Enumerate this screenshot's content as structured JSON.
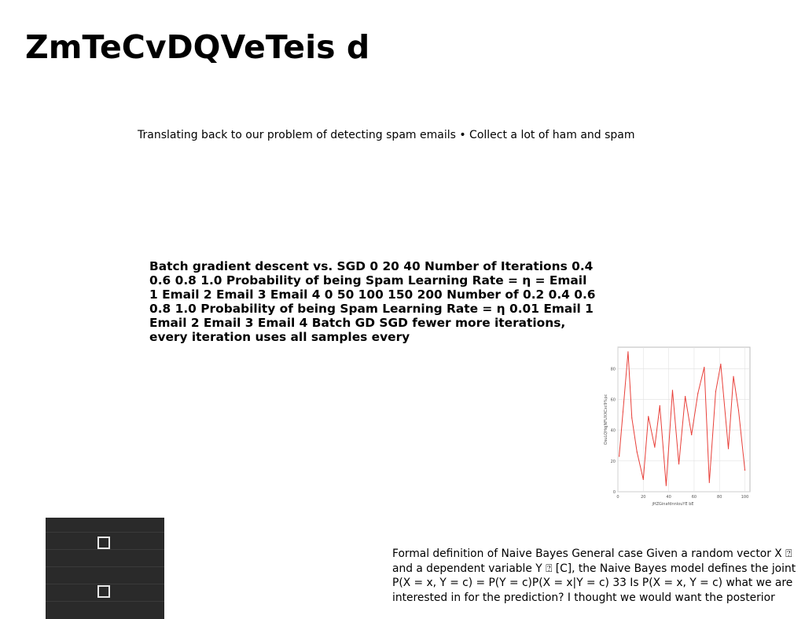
{
  "title": "ZmTeCvDQVeTeis d",
  "subtitle": "Translating back to our problem of detecting spam emails • Collect a lot of ham and spam",
  "bold_block": "Batch gradient descent vs. SGD 0 20 40 Number of Iterations 0.4 0.6 0.8 1.0 Probability of being Spam Learning Rate = η = Email 1 Email 2 Email 3 Email 4 0 50 100 150 200 Number of 0.2 0.4 0.6 0.8 1.0 Probability of being Spam Learning Rate = η 0.01 Email 1 Email 2 Email 3 Email 4 Batch GD SGD fewer more iterations, every iteration uses all samples every",
  "footer_text": "Formal definition of Naive Bayes General case Given a random vector X ⍰ and a dependent variable Y ⍰ [C], the Naive Bayes model defines the joint P(X = x, Y = c) = P(Y = c)P(X = x|Y = c) 33 Is P(X = x, Y = c) what we are interested in for the prediction? I thought we would want the posterior",
  "chart_data": {
    "type": "line",
    "xlabel": "jHZGinafdnnlouYE bE",
    "ylabel": "OsuLQHqjNFUXXCxc9%pc",
    "x": [
      1,
      4,
      8,
      11,
      15,
      20,
      24,
      29,
      33,
      38,
      43,
      48,
      53,
      58,
      63,
      68,
      72,
      77,
      81,
      87,
      91,
      95,
      100
    ],
    "y": [
      23,
      52,
      91,
      48,
      26,
      8,
      49,
      29,
      56,
      4,
      66,
      18,
      62,
      37,
      64,
      81,
      6,
      65,
      83,
      28,
      75,
      53,
      14
    ],
    "xlim": [
      0,
      104
    ],
    "ylim": [
      0,
      94
    ],
    "xticks": [
      0,
      20,
      40,
      60,
      80,
      100
    ],
    "yticks": [
      0,
      20,
      40,
      60,
      80
    ],
    "grid": true,
    "line_color": "#e8403a"
  },
  "thumbnail": {
    "checkboxes": 2,
    "bg_color": "#2a2a2a"
  }
}
